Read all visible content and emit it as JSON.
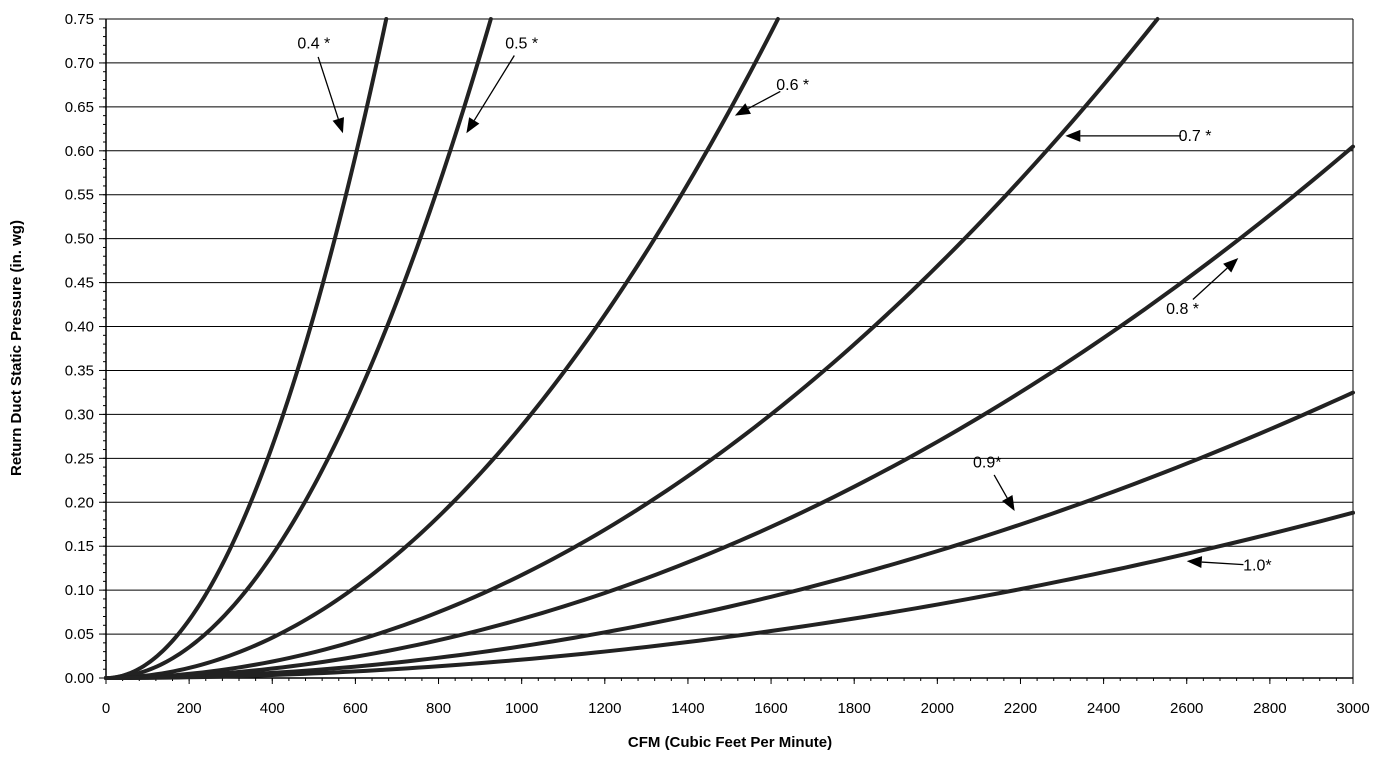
{
  "chart_data": {
    "type": "line",
    "title": "",
    "xlabel": "CFM (Cubic Feet Per Minute)",
    "ylabel": "Return Duct Static Pressure (in. wg)",
    "xlim": [
      0,
      3000
    ],
    "ylim": [
      0,
      0.75
    ],
    "grid": "horizontal",
    "x_ticks": [
      0,
      200,
      400,
      600,
      800,
      1000,
      1200,
      1400,
      1600,
      1800,
      2000,
      2200,
      2400,
      2600,
      2800,
      3000
    ],
    "x_tick_labels": [
      "0",
      "200",
      "400",
      "600",
      "800",
      "1000",
      "1200",
      "1400",
      "1600",
      "1800",
      "2000",
      "2200",
      "2400",
      "2600",
      "2800",
      "3000"
    ],
    "y_ticks": [
      0,
      0.05,
      0.1,
      0.15,
      0.2,
      0.25,
      0.3,
      0.35,
      0.4,
      0.45,
      0.5,
      0.55,
      0.6,
      0.65,
      0.7,
      0.75
    ],
    "y_tick_labels": [
      "0.00",
      "0.05",
      "0.10",
      "0.15",
      "0.20",
      "0.25",
      "0.30",
      "0.35",
      "0.40",
      "0.45",
      "0.50",
      "0.55",
      "0.60",
      "0.65",
      "0.70",
      "0.75"
    ],
    "series": [
      {
        "label": "0.4 *",
        "k_per_1000cfm_sq": 1.65,
        "x": [
          0,
          100,
          200,
          300,
          400,
          500,
          600,
          675
        ],
        "y": [
          0,
          0.0165,
          0.066,
          0.1485,
          0.264,
          0.4125,
          0.594,
          0.752
        ]
      },
      {
        "label": "0.5 *",
        "k_per_1000cfm_sq": 0.875,
        "x": [
          0,
          100,
          200,
          300,
          400,
          500,
          600,
          700,
          800,
          900,
          926
        ],
        "y": [
          0,
          0.0088,
          0.035,
          0.0788,
          0.14,
          0.2188,
          0.315,
          0.4288,
          0.56,
          0.7088,
          0.75
        ]
      },
      {
        "label": "0.6 *",
        "k_per_1000cfm_sq": 0.287,
        "x": [
          0,
          200,
          400,
          600,
          800,
          1000,
          1200,
          1400,
          1616
        ],
        "y": [
          0,
          0.0115,
          0.0459,
          0.1033,
          0.1837,
          0.287,
          0.4133,
          0.5625,
          0.75
        ]
      },
      {
        "label": "0.7 *",
        "k_per_1000cfm_sq": 0.1172,
        "x": [
          0,
          400,
          800,
          1200,
          1600,
          2000,
          2400,
          2528
        ],
        "y": [
          0,
          0.0188,
          0.075,
          0.1688,
          0.3,
          0.4688,
          0.675,
          0.75
        ]
      },
      {
        "label": "0.8 *",
        "k_per_1000cfm_sq": 0.0672,
        "x": [
          0,
          500,
          1000,
          1500,
          2000,
          2500,
          3000
        ],
        "y": [
          0,
          0.0168,
          0.0672,
          0.1512,
          0.2688,
          0.42,
          0.605
        ]
      },
      {
        "label": "0.9*",
        "k_per_1000cfm_sq": 0.0361,
        "x": [
          0,
          500,
          1000,
          1500,
          2000,
          2500,
          3000
        ],
        "y": [
          0,
          0.009,
          0.0361,
          0.0813,
          0.1444,
          0.2257,
          0.325
        ]
      },
      {
        "label": "1.0*",
        "k_per_1000cfm_sq": 0.0209,
        "x": [
          0,
          500,
          1000,
          1500,
          2000,
          2500,
          3000
        ],
        "y": [
          0,
          0.0052,
          0.0209,
          0.047,
          0.0836,
          0.1306,
          0.188
        ]
      }
    ],
    "annotations": [
      {
        "text": "0.4 *",
        "arrow_to": [
          570,
          0.62
        ],
        "label_at": [
          500,
          0.722
        ]
      },
      {
        "text": "0.5 *",
        "arrow_to": [
          867,
          0.62
        ],
        "label_at": [
          1000,
          0.722
        ]
      },
      {
        "text": "0.6 *",
        "arrow_to": [
          1513,
          0.64
        ],
        "label_at": [
          1652,
          0.675
        ]
      },
      {
        "text": "0.7 *",
        "arrow_to": [
          2308,
          0.617
        ],
        "label_at": [
          2620,
          0.617
        ]
      },
      {
        "text": "0.8 *",
        "arrow_to": [
          2724,
          0.478
        ],
        "label_at": [
          2590,
          0.42
        ]
      },
      {
        "text": "0.9*",
        "arrow_to": [
          2186,
          0.19
        ],
        "label_at": [
          2120,
          0.245
        ]
      },
      {
        "text": "1.0*",
        "arrow_to": [
          2600,
          0.133
        ],
        "label_at": [
          2770,
          0.128
        ]
      }
    ]
  }
}
